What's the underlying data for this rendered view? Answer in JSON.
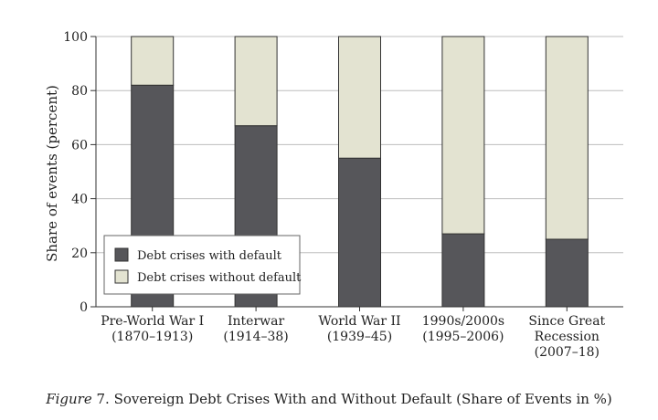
{
  "caption": {
    "figure_label": "Figure",
    "figure_number": "7.",
    "text": "Sovereign Debt Crises With and Without Default (Share of Events in %)"
  },
  "chart_data": {
    "type": "bar",
    "stacked": true,
    "categories": [
      [
        "Pre-World War I",
        "(1870–1913)"
      ],
      [
        "Interwar",
        "(1914–38)"
      ],
      [
        "World War II",
        "(1939–45)"
      ],
      [
        "1990s/2000s",
        "(1995–2006)"
      ],
      [
        "Since Great",
        "Recession",
        "(2007–18)"
      ]
    ],
    "series": [
      {
        "name": "Debt crises with default",
        "color": "#56565a",
        "values": [
          82,
          67,
          55,
          27,
          25
        ]
      },
      {
        "name": "Debt crises without default",
        "color": "#e3e3d1",
        "values": [
          18,
          33,
          45,
          73,
          75
        ]
      }
    ],
    "ylabel": "Share of events (percent)",
    "ylim": [
      0,
      100
    ],
    "yticks": [
      0,
      20,
      40,
      60,
      80,
      100
    ],
    "grid": true,
    "legend": "bottom-left"
  }
}
